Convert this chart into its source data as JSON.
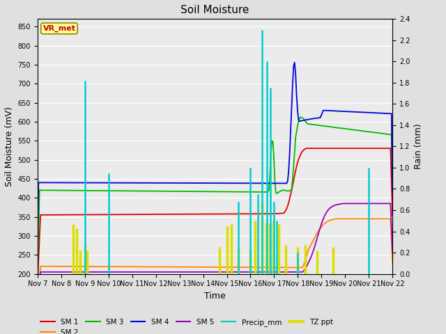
{
  "title": "Soil Moisture",
  "xlabel": "Time",
  "ylabel_left": "Soil Moisture (mV)",
  "ylabel_right": "Rain (mm)",
  "ylim_left": [
    200,
    870
  ],
  "ylim_right": [
    0.0,
    2.4
  ],
  "yticks_left": [
    200,
    250,
    300,
    350,
    400,
    450,
    500,
    550,
    600,
    650,
    700,
    750,
    800,
    850
  ],
  "yticks_right": [
    0.0,
    0.2,
    0.4,
    0.6,
    0.8,
    1.0,
    1.2,
    1.4,
    1.6,
    1.8,
    2.0,
    2.2,
    2.4
  ],
  "xtick_labels": [
    "Nov 7",
    "Nov 8",
    "Nov 9",
    "Nov 10",
    "Nov 11",
    "Nov 12",
    "Nov 13",
    "Nov 14",
    "Nov 15",
    "Nov 16",
    "Nov 17",
    "Nov 18",
    "Nov 19",
    "Nov 20",
    "Nov 21",
    "Nov 22"
  ],
  "background_color": "#e0e0e0",
  "plot_bg_color": "#ebebeb",
  "annotation_label": "VR_met",
  "annotation_color": "#cc0000",
  "annotation_bg": "#ffff99",
  "annotation_edge": "#888800",
  "colors": {
    "SM1": "#dd0000",
    "SM2": "#ff8800",
    "SM3": "#00bb00",
    "SM4": "#0000dd",
    "SM5": "#9900bb",
    "Precip": "#00cccc",
    "TZ": "#dddd00"
  }
}
